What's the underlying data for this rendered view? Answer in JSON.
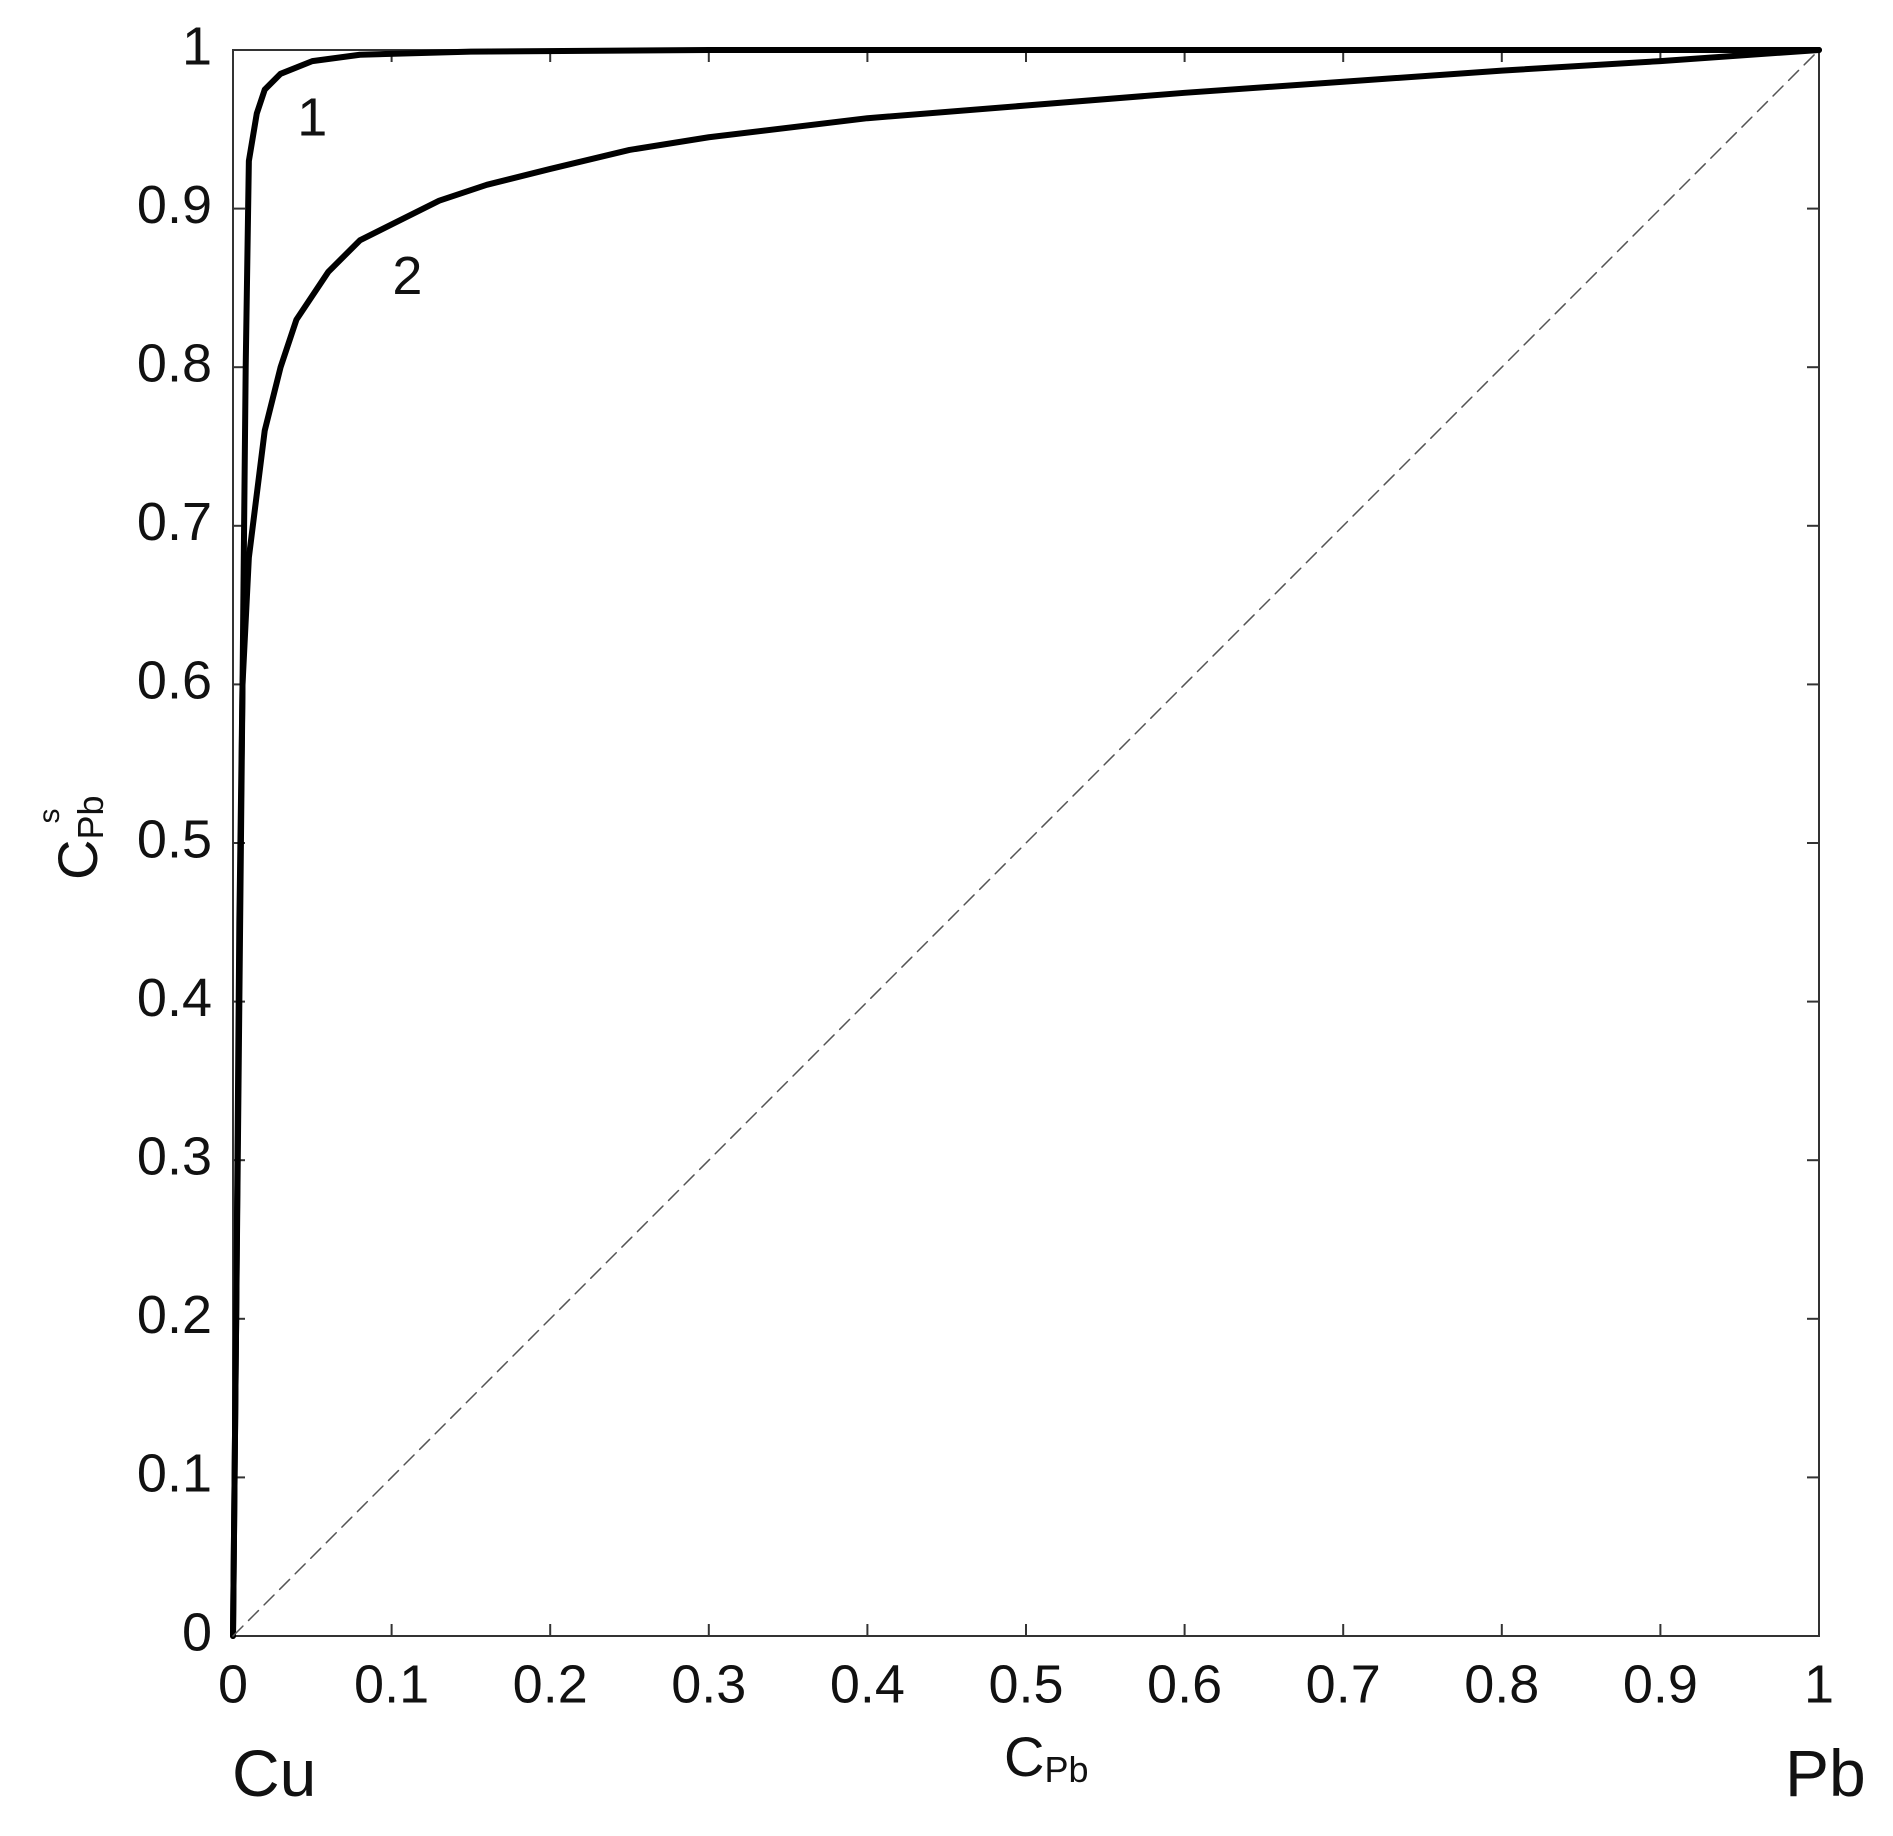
{
  "chart_data": {
    "type": "line",
    "xlabel": "C",
    "xlabel_sub": "Pb",
    "ylabel": "C",
    "ylabel_sub": "Pb",
    "ylabel_sup": "s",
    "left_annotation": "Cu",
    "right_annotation": "Pb",
    "xlim": [
      0,
      1
    ],
    "ylim": [
      0,
      1
    ],
    "xticks": [
      0,
      0.1,
      0.2,
      0.3,
      0.4,
      0.5,
      0.6,
      0.7,
      0.8,
      0.9,
      1
    ],
    "yticks": [
      0,
      0.1,
      0.2,
      0.3,
      0.4,
      0.5,
      0.6,
      0.7,
      0.8,
      0.9,
      1
    ],
    "series": [
      {
        "name": "1",
        "color": "#000000",
        "x": [
          0,
          0.002,
          0.005,
          0.008,
          0.01,
          0.015,
          0.02,
          0.03,
          0.05,
          0.08,
          0.15,
          0.3,
          0.6,
          1
        ],
        "values": [
          0,
          0.2,
          0.5,
          0.8,
          0.93,
          0.96,
          0.975,
          0.985,
          0.993,
          0.997,
          0.999,
          1,
          1,
          1
        ]
      },
      {
        "name": "2",
        "color": "#000000",
        "x": [
          0,
          0.002,
          0.004,
          0.006,
          0.01,
          0.015,
          0.02,
          0.03,
          0.04,
          0.06,
          0.08,
          0.1,
          0.13,
          0.16,
          0.2,
          0.25,
          0.3,
          0.4,
          0.5,
          0.6,
          0.7,
          0.8,
          0.9,
          1
        ],
        "values": [
          0,
          0.2,
          0.45,
          0.6,
          0.68,
          0.72,
          0.76,
          0.8,
          0.83,
          0.86,
          0.88,
          0.89,
          0.905,
          0.915,
          0.925,
          0.937,
          0.945,
          0.957,
          0.965,
          0.973,
          0.98,
          0.987,
          0.993,
          1
        ]
      },
      {
        "color": "#555555",
        "dashed": true,
        "x": [
          0,
          1
        ],
        "values": [
          0,
          1
        ]
      }
    ]
  }
}
